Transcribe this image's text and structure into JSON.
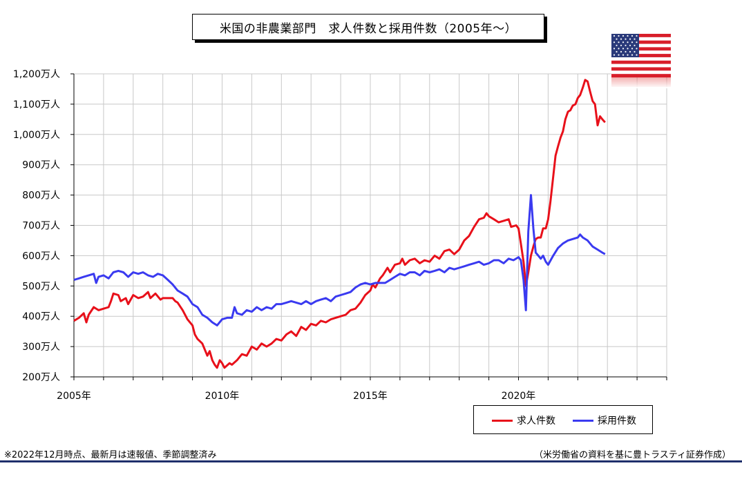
{
  "chart_title": "米国の非農業部門　求人件数と採用件数（2005年～）",
  "footnote_left": "※2022年12月時点、最新月は速報値、季節調整済み",
  "footnote_right": "（米労働省の資料を基に豊トラスティ証券作成）",
  "colors": {
    "openings": "#e8101a",
    "hires": "#3a3af0",
    "grid": "#c8c8c8",
    "rule": "#1f2f6b"
  },
  "chart_data": {
    "type": "line",
    "title": "米国の非農業部門　求人件数と採用件数（2005年～）",
    "xlabel": "",
    "ylabel": "",
    "x_range": [
      2005.0,
      2025.0
    ],
    "ylim": [
      200,
      1200
    ],
    "y_ticks": [
      200,
      300,
      400,
      500,
      600,
      700,
      800,
      900,
      1000,
      1100,
      1200
    ],
    "y_tick_labels": [
      "200万人",
      "300万人",
      "400万人",
      "500万人",
      "600万人",
      "700万人",
      "800万人",
      "900万人",
      "1,000万人",
      "1,100万人",
      "1,200万人"
    ],
    "x_ticks": [
      2005,
      2010,
      2015,
      2020
    ],
    "x_tick_labels": [
      "2005年",
      "2010年",
      "2015年",
      "2020年"
    ],
    "grid": true,
    "legend_position": "bottom-right",
    "series": [
      {
        "name": "求人件数",
        "color": "#e8101a",
        "points": [
          [
            2005.0,
            385
          ],
          [
            2005.17,
            395
          ],
          [
            2005.33,
            410
          ],
          [
            2005.42,
            380
          ],
          [
            2005.5,
            405
          ],
          [
            2005.67,
            430
          ],
          [
            2005.83,
            420
          ],
          [
            2006.0,
            425
          ],
          [
            2006.17,
            430
          ],
          [
            2006.25,
            450
          ],
          [
            2006.33,
            475
          ],
          [
            2006.5,
            470
          ],
          [
            2006.58,
            450
          ],
          [
            2006.75,
            460
          ],
          [
            2006.83,
            440
          ],
          [
            2007.0,
            470
          ],
          [
            2007.17,
            460
          ],
          [
            2007.33,
            465
          ],
          [
            2007.5,
            480
          ],
          [
            2007.58,
            460
          ],
          [
            2007.75,
            475
          ],
          [
            2007.92,
            455
          ],
          [
            2008.0,
            460
          ],
          [
            2008.17,
            460
          ],
          [
            2008.33,
            460
          ],
          [
            2008.42,
            450
          ],
          [
            2008.5,
            445
          ],
          [
            2008.67,
            420
          ],
          [
            2008.83,
            390
          ],
          [
            2009.0,
            370
          ],
          [
            2009.08,
            340
          ],
          [
            2009.17,
            325
          ],
          [
            2009.33,
            310
          ],
          [
            2009.5,
            270
          ],
          [
            2009.58,
            285
          ],
          [
            2009.67,
            255
          ],
          [
            2009.75,
            240
          ],
          [
            2009.83,
            230
          ],
          [
            2009.92,
            255
          ],
          [
            2010.0,
            245
          ],
          [
            2010.08,
            230
          ],
          [
            2010.25,
            245
          ],
          [
            2010.33,
            240
          ],
          [
            2010.5,
            255
          ],
          [
            2010.67,
            275
          ],
          [
            2010.83,
            270
          ],
          [
            2011.0,
            300
          ],
          [
            2011.17,
            290
          ],
          [
            2011.33,
            310
          ],
          [
            2011.5,
            300
          ],
          [
            2011.67,
            310
          ],
          [
            2011.83,
            325
          ],
          [
            2012.0,
            320
          ],
          [
            2012.17,
            340
          ],
          [
            2012.33,
            350
          ],
          [
            2012.5,
            335
          ],
          [
            2012.67,
            365
          ],
          [
            2012.83,
            355
          ],
          [
            2013.0,
            375
          ],
          [
            2013.17,
            370
          ],
          [
            2013.33,
            385
          ],
          [
            2013.5,
            380
          ],
          [
            2013.67,
            390
          ],
          [
            2013.83,
            395
          ],
          [
            2014.0,
            400
          ],
          [
            2014.17,
            405
          ],
          [
            2014.33,
            420
          ],
          [
            2014.5,
            425
          ],
          [
            2014.67,
            445
          ],
          [
            2014.83,
            470
          ],
          [
            2015.0,
            485
          ],
          [
            2015.08,
            505
          ],
          [
            2015.17,
            495
          ],
          [
            2015.33,
            525
          ],
          [
            2015.42,
            535
          ],
          [
            2015.58,
            560
          ],
          [
            2015.67,
            545
          ],
          [
            2015.83,
            570
          ],
          [
            2016.0,
            575
          ],
          [
            2016.08,
            590
          ],
          [
            2016.17,
            570
          ],
          [
            2016.33,
            585
          ],
          [
            2016.5,
            590
          ],
          [
            2016.67,
            575
          ],
          [
            2016.83,
            585
          ],
          [
            2017.0,
            580
          ],
          [
            2017.17,
            600
          ],
          [
            2017.33,
            590
          ],
          [
            2017.5,
            615
          ],
          [
            2017.67,
            620
          ],
          [
            2017.83,
            605
          ],
          [
            2018.0,
            620
          ],
          [
            2018.17,
            650
          ],
          [
            2018.33,
            665
          ],
          [
            2018.5,
            695
          ],
          [
            2018.67,
            720
          ],
          [
            2018.83,
            725
          ],
          [
            2018.92,
            740
          ],
          [
            2019.0,
            730
          ],
          [
            2019.17,
            720
          ],
          [
            2019.33,
            710
          ],
          [
            2019.5,
            715
          ],
          [
            2019.67,
            720
          ],
          [
            2019.75,
            695
          ],
          [
            2019.92,
            700
          ],
          [
            2020.0,
            690
          ],
          [
            2020.08,
            640
          ],
          [
            2020.17,
            580
          ],
          [
            2020.25,
            500
          ],
          [
            2020.33,
            545
          ],
          [
            2020.42,
            600
          ],
          [
            2020.5,
            630
          ],
          [
            2020.58,
            655
          ],
          [
            2020.67,
            660
          ],
          [
            2020.75,
            660
          ],
          [
            2020.83,
            690
          ],
          [
            2020.92,
            690
          ],
          [
            2021.0,
            720
          ],
          [
            2021.08,
            780
          ],
          [
            2021.17,
            860
          ],
          [
            2021.25,
            930
          ],
          [
            2021.33,
            960
          ],
          [
            2021.42,
            990
          ],
          [
            2021.5,
            1010
          ],
          [
            2021.58,
            1050
          ],
          [
            2021.67,
            1075
          ],
          [
            2021.75,
            1080
          ],
          [
            2021.83,
            1095
          ],
          [
            2021.92,
            1100
          ],
          [
            2022.0,
            1120
          ],
          [
            2022.08,
            1130
          ],
          [
            2022.17,
            1155
          ],
          [
            2022.25,
            1180
          ],
          [
            2022.33,
            1175
          ],
          [
            2022.42,
            1140
          ],
          [
            2022.5,
            1110
          ],
          [
            2022.58,
            1100
          ],
          [
            2022.67,
            1030
          ],
          [
            2022.75,
            1060
          ],
          [
            2022.83,
            1050
          ],
          [
            2022.92,
            1040
          ]
        ]
      },
      {
        "name": "採用件数",
        "color": "#3a3af0",
        "points": [
          [
            2005.0,
            520
          ],
          [
            2005.17,
            525
          ],
          [
            2005.33,
            530
          ],
          [
            2005.5,
            535
          ],
          [
            2005.67,
            540
          ],
          [
            2005.75,
            510
          ],
          [
            2005.83,
            530
          ],
          [
            2006.0,
            535
          ],
          [
            2006.17,
            525
          ],
          [
            2006.33,
            545
          ],
          [
            2006.5,
            550
          ],
          [
            2006.67,
            545
          ],
          [
            2006.83,
            530
          ],
          [
            2007.0,
            545
          ],
          [
            2007.17,
            540
          ],
          [
            2007.33,
            545
          ],
          [
            2007.5,
            535
          ],
          [
            2007.67,
            530
          ],
          [
            2007.83,
            540
          ],
          [
            2008.0,
            535
          ],
          [
            2008.17,
            520
          ],
          [
            2008.33,
            505
          ],
          [
            2008.5,
            485
          ],
          [
            2008.67,
            475
          ],
          [
            2008.83,
            465
          ],
          [
            2009.0,
            440
          ],
          [
            2009.17,
            430
          ],
          [
            2009.33,
            405
          ],
          [
            2009.5,
            395
          ],
          [
            2009.67,
            380
          ],
          [
            2009.83,
            370
          ],
          [
            2010.0,
            390
          ],
          [
            2010.17,
            395
          ],
          [
            2010.33,
            395
          ],
          [
            2010.42,
            430
          ],
          [
            2010.5,
            410
          ],
          [
            2010.67,
            405
          ],
          [
            2010.83,
            420
          ],
          [
            2011.0,
            415
          ],
          [
            2011.17,
            430
          ],
          [
            2011.33,
            420
          ],
          [
            2011.5,
            430
          ],
          [
            2011.67,
            425
          ],
          [
            2011.83,
            440
          ],
          [
            2012.0,
            440
          ],
          [
            2012.17,
            445
          ],
          [
            2012.33,
            450
          ],
          [
            2012.5,
            445
          ],
          [
            2012.67,
            440
          ],
          [
            2012.83,
            450
          ],
          [
            2013.0,
            440
          ],
          [
            2013.17,
            450
          ],
          [
            2013.33,
            455
          ],
          [
            2013.5,
            460
          ],
          [
            2013.67,
            450
          ],
          [
            2013.83,
            465
          ],
          [
            2014.0,
            470
          ],
          [
            2014.17,
            475
          ],
          [
            2014.33,
            480
          ],
          [
            2014.5,
            495
          ],
          [
            2014.67,
            505
          ],
          [
            2014.83,
            510
          ],
          [
            2015.0,
            505
          ],
          [
            2015.17,
            510
          ],
          [
            2015.33,
            510
          ],
          [
            2015.5,
            510
          ],
          [
            2015.67,
            520
          ],
          [
            2015.83,
            530
          ],
          [
            2016.0,
            540
          ],
          [
            2016.17,
            535
          ],
          [
            2016.33,
            545
          ],
          [
            2016.5,
            545
          ],
          [
            2016.67,
            535
          ],
          [
            2016.83,
            550
          ],
          [
            2017.0,
            545
          ],
          [
            2017.17,
            550
          ],
          [
            2017.33,
            555
          ],
          [
            2017.5,
            545
          ],
          [
            2017.67,
            560
          ],
          [
            2017.83,
            555
          ],
          [
            2018.0,
            560
          ],
          [
            2018.17,
            565
          ],
          [
            2018.33,
            570
          ],
          [
            2018.5,
            575
          ],
          [
            2018.67,
            580
          ],
          [
            2018.83,
            570
          ],
          [
            2019.0,
            575
          ],
          [
            2019.17,
            585
          ],
          [
            2019.33,
            585
          ],
          [
            2019.5,
            575
          ],
          [
            2019.67,
            590
          ],
          [
            2019.83,
            585
          ],
          [
            2020.0,
            595
          ],
          [
            2020.08,
            585
          ],
          [
            2020.17,
            520
          ],
          [
            2020.25,
            420
          ],
          [
            2020.33,
            680
          ],
          [
            2020.42,
            800
          ],
          [
            2020.5,
            690
          ],
          [
            2020.58,
            610
          ],
          [
            2020.67,
            600
          ],
          [
            2020.75,
            590
          ],
          [
            2020.83,
            600
          ],
          [
            2020.92,
            580
          ],
          [
            2021.0,
            570
          ],
          [
            2021.17,
            600
          ],
          [
            2021.33,
            625
          ],
          [
            2021.5,
            640
          ],
          [
            2021.67,
            650
          ],
          [
            2021.83,
            655
          ],
          [
            2022.0,
            660
          ],
          [
            2022.08,
            670
          ],
          [
            2022.17,
            660
          ],
          [
            2022.33,
            650
          ],
          [
            2022.5,
            630
          ],
          [
            2022.67,
            620
          ],
          [
            2022.83,
            610
          ],
          [
            2022.92,
            605
          ]
        ]
      }
    ]
  }
}
